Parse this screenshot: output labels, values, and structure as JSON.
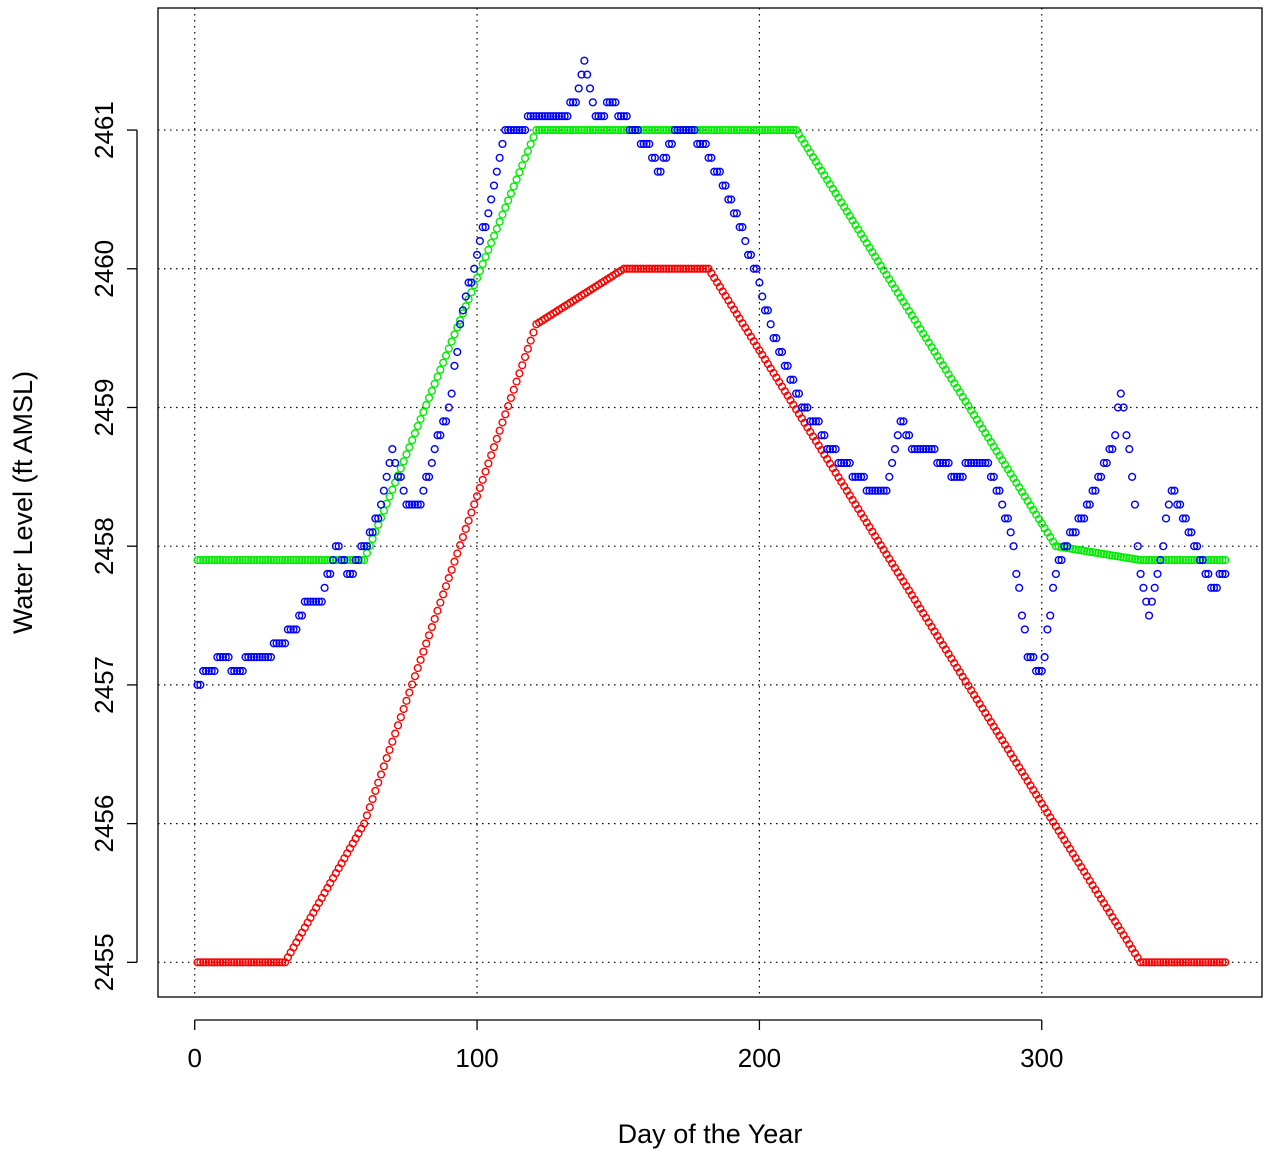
{
  "chart_data": {
    "type": "scatter",
    "title": "",
    "xlabel": "Day of the Year",
    "ylabel": "Water Level (ft AMSL)",
    "xlim": [
      -13,
      378
    ],
    "ylim": [
      2454.75,
      2461.88
    ],
    "x_ticks": [
      0,
      100,
      200,
      300
    ],
    "x_tick_labels": [
      "0",
      "100",
      "200",
      "300"
    ],
    "y_ticks": [
      2455,
      2456,
      2457,
      2458,
      2459,
      2460,
      2461
    ],
    "y_tick_labels": [
      "2455",
      "2456",
      "2457",
      "2458",
      "2459",
      "2460",
      "2461"
    ],
    "grid": true,
    "grid_style": "dotted",
    "legend": "none",
    "marker": "open-circle",
    "series": [
      {
        "color": "#ff0000",
        "breakpoints": [
          [
            1,
            2455.0
          ],
          [
            32,
            2455.0
          ],
          [
            60,
            2456.0
          ],
          [
            121,
            2459.6
          ],
          [
            152,
            2460.0
          ],
          [
            182,
            2460.0
          ],
          [
            335,
            2455.0
          ],
          [
            365,
            2455.0
          ]
        ]
      },
      {
        "color": "#00ee00",
        "breakpoints": [
          [
            1,
            2457.9
          ],
          [
            60,
            2457.9
          ],
          [
            121,
            2461.0
          ],
          [
            213,
            2461.0
          ],
          [
            305,
            2458.0
          ],
          [
            335,
            2457.9
          ],
          [
            365,
            2457.9
          ]
        ]
      },
      {
        "color": "#0000ff",
        "breakpoints": [
          [
            1,
            2457.0
          ],
          [
            5,
            2457.1
          ],
          [
            10,
            2457.2
          ],
          [
            15,
            2457.1
          ],
          [
            20,
            2457.2
          ],
          [
            25,
            2457.2
          ],
          [
            30,
            2457.3
          ],
          [
            35,
            2457.4
          ],
          [
            40,
            2457.6
          ],
          [
            45,
            2457.6
          ],
          [
            50,
            2458.0
          ],
          [
            55,
            2457.8
          ],
          [
            60,
            2458.0
          ],
          [
            65,
            2458.2
          ],
          [
            70,
            2458.7
          ],
          [
            75,
            2458.3
          ],
          [
            80,
            2458.3
          ],
          [
            85,
            2458.7
          ],
          [
            90,
            2459.0
          ],
          [
            95,
            2459.7
          ],
          [
            100,
            2460.1
          ],
          [
            105,
            2460.5
          ],
          [
            110,
            2461.0
          ],
          [
            115,
            2461.0
          ],
          [
            120,
            2461.1
          ],
          [
            125,
            2461.1
          ],
          [
            130,
            2461.1
          ],
          [
            135,
            2461.2
          ],
          [
            138,
            2461.5
          ],
          [
            142,
            2461.1
          ],
          [
            148,
            2461.2
          ],
          [
            155,
            2461.0
          ],
          [
            160,
            2460.9
          ],
          [
            165,
            2460.7
          ],
          [
            170,
            2461.0
          ],
          [
            175,
            2461.0
          ],
          [
            180,
            2460.9
          ],
          [
            185,
            2460.7
          ],
          [
            190,
            2460.5
          ],
          [
            195,
            2460.2
          ],
          [
            200,
            2459.9
          ],
          [
            205,
            2459.5
          ],
          [
            210,
            2459.3
          ],
          [
            215,
            2459.0
          ],
          [
            220,
            2458.9
          ],
          [
            225,
            2458.7
          ],
          [
            230,
            2458.6
          ],
          [
            235,
            2458.5
          ],
          [
            240,
            2458.4
          ],
          [
            245,
            2458.4
          ],
          [
            250,
            2458.9
          ],
          [
            255,
            2458.7
          ],
          [
            260,
            2458.7
          ],
          [
            265,
            2458.6
          ],
          [
            270,
            2458.5
          ],
          [
            275,
            2458.6
          ],
          [
            280,
            2458.6
          ],
          [
            285,
            2458.4
          ],
          [
            290,
            2458.0
          ],
          [
            295,
            2457.2
          ],
          [
            300,
            2457.1
          ],
          [
            305,
            2457.8
          ],
          [
            310,
            2458.1
          ],
          [
            315,
            2458.2
          ],
          [
            320,
            2458.5
          ],
          [
            325,
            2458.7
          ],
          [
            328,
            2459.1
          ],
          [
            332,
            2458.5
          ],
          [
            335,
            2457.8
          ],
          [
            338,
            2457.5
          ],
          [
            342,
            2457.9
          ],
          [
            346,
            2458.4
          ],
          [
            350,
            2458.2
          ],
          [
            355,
            2458.0
          ],
          [
            360,
            2457.7
          ],
          [
            365,
            2457.8
          ]
        ]
      }
    ]
  }
}
